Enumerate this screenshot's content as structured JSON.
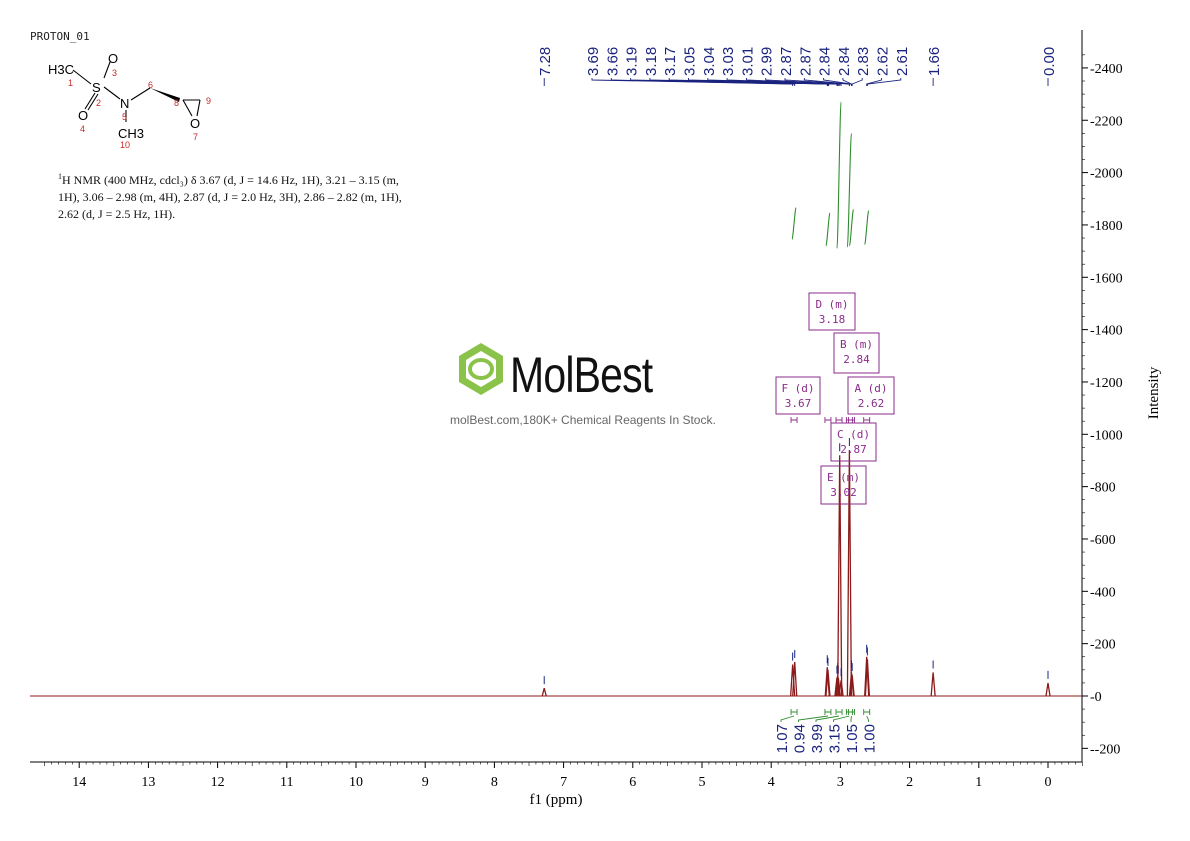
{
  "sample_id": "PROTON_01",
  "structure": {
    "atoms": [
      {
        "text": "H3C",
        "number": "1"
      },
      {
        "text": "S",
        "number": "2"
      },
      {
        "text": "O",
        "number": "3"
      },
      {
        "text": "O",
        "number": "4"
      },
      {
        "text": "N",
        "number": "5"
      },
      {
        "text": "",
        "number": "6"
      },
      {
        "text": "O",
        "number": "7"
      },
      {
        "text": "",
        "number": "8"
      },
      {
        "text": "",
        "number": "9"
      },
      {
        "text": "CH3",
        "number": "10"
      }
    ]
  },
  "nmr_description": {
    "line1": "H NMR (400 MHz, cdcl₃) δ 3.67 (d, J = 14.6 Hz, 1H), 3.21 – 3.15 (m,",
    "line2": "1H), 3.06 – 2.98 (m, 4H), 2.87 (d, J = 2.0 Hz, 3H), 2.86 – 2.82 (m, 1H),",
    "line3": "2.62 (d, J = 2.5 Hz, 1H).",
    "superscript": "1"
  },
  "watermark": {
    "name": "MolBest",
    "tagline": "molBest.com,180K+ Chemical Reagents In Stock."
  },
  "chart_data": {
    "type": "line",
    "xlabel": "f1 (ppm)",
    "ylabel": "Intensity",
    "xlim": [
      14.6,
      -0.5
    ],
    "ylim": [
      -250,
      2500
    ],
    "x_ticks": [
      14,
      13,
      12,
      11,
      10,
      9,
      8,
      7,
      6,
      5,
      4,
      3,
      2,
      1,
      0
    ],
    "y_ticks": [
      -200,
      0,
      200,
      400,
      600,
      800,
      1000,
      1200,
      1400,
      1600,
      1800,
      2000,
      2200,
      2400
    ],
    "peaks": [
      {
        "ppm": 7.28,
        "intensity": 30
      },
      {
        "ppm": 3.69,
        "intensity": 120
      },
      {
        "ppm": 3.66,
        "intensity": 130
      },
      {
        "ppm": 3.19,
        "intensity": 110
      },
      {
        "ppm": 3.18,
        "intensity": 100
      },
      {
        "ppm": 3.05,
        "intensity": 70
      },
      {
        "ppm": 3.04,
        "intensity": 80
      },
      {
        "ppm": 3.03,
        "intensity": 70
      },
      {
        "ppm": 3.01,
        "intensity": 920
      },
      {
        "ppm": 2.99,
        "intensity": 60
      },
      {
        "ppm": 2.87,
        "intensity": 940
      },
      {
        "ppm": 2.84,
        "intensity": 90
      },
      {
        "ppm": 2.83,
        "intensity": 80
      },
      {
        "ppm": 2.62,
        "intensity": 150
      },
      {
        "ppm": 2.61,
        "intensity": 140
      },
      {
        "ppm": 1.66,
        "intensity": 90
      },
      {
        "ppm": 0.0,
        "intensity": 50
      }
    ],
    "peak_labels": [
      "7.28",
      "3.69",
      "3.66",
      "3.19",
      "3.18",
      "3.17",
      "3.05",
      "3.04",
      "3.03",
      "3.01",
      "2.99",
      "2.87",
      "2.87",
      "2.84",
      "2.84",
      "2.83",
      "2.62",
      "2.61",
      "1.66",
      "0.00"
    ],
    "peak_label_positions": [
      7.28,
      3.69,
      3.66,
      3.19,
      3.18,
      3.17,
      3.05,
      3.04,
      3.03,
      3.01,
      2.99,
      2.87,
      2.87,
      2.84,
      2.84,
      2.83,
      2.62,
      2.61,
      1.66,
      0.0
    ],
    "multiplets": [
      {
        "letter": "D",
        "type": "m",
        "shift": "3.18",
        "ppm": 3.18
      },
      {
        "letter": "B",
        "type": "m",
        "shift": "2.84",
        "ppm": 2.84
      },
      {
        "letter": "F",
        "type": "d",
        "shift": "3.67",
        "ppm": 3.67
      },
      {
        "letter": "A",
        "type": "d",
        "shift": "2.62",
        "ppm": 2.62
      },
      {
        "letter": "C",
        "type": "d",
        "shift": "2.87",
        "ppm": 2.87
      },
      {
        "letter": "E",
        "type": "m",
        "shift": "3.02",
        "ppm": 3.02
      }
    ],
    "integrals": [
      {
        "ppm": 3.67,
        "value": "1.07"
      },
      {
        "ppm": 3.18,
        "value": "0.94"
      },
      {
        "ppm": 3.02,
        "value": "3.99"
      },
      {
        "ppm": 2.87,
        "value": "3.15"
      },
      {
        "ppm": 2.84,
        "value": "1.05"
      },
      {
        "ppm": 2.62,
        "value": "1.00"
      }
    ],
    "colors": {
      "spectrum": "#8b1a1a",
      "peak_labels": "#1a237e",
      "multiplet_boxes": "#8b2b8b",
      "integral_curves": "#2e8b2e",
      "integral_labels": "#1a237e",
      "axis": "#000000"
    }
  }
}
